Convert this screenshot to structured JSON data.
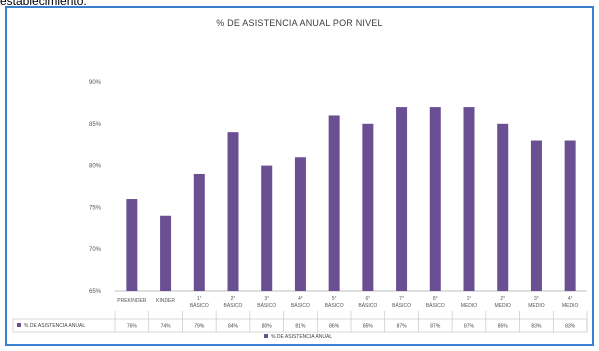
{
  "page": {
    "top_fragment": "establecimiento."
  },
  "chart_data": {
    "type": "bar",
    "title": "% DE ASISTENCIA ANUAL POR NIVEL",
    "xlabel": "",
    "ylabel": "",
    "ylim": [
      65,
      90
    ],
    "yticks": [
      "65%",
      "70%",
      "75%",
      "80%",
      "85%",
      "90%"
    ],
    "ytick_values": [
      65,
      70,
      75,
      80,
      85,
      90
    ],
    "grid": false,
    "legend_position": "bottom",
    "series_color": "#6a4f93",
    "categories": [
      "PREKINDER",
      "KINDER",
      "1° BÁSICO",
      "2° BÁSICO",
      "3° BÁSICO",
      "4° BÁSICO",
      "5° BÁSICO",
      "6° BÁSICO",
      "7° BÁSICO",
      "8° BÁSICO",
      "1° MEDIO",
      "2° MEDIO",
      "3° MEDIO",
      "4° MEDIO"
    ],
    "series": [
      {
        "name": "% DE ASISTENCIA ANUAL",
        "values": [
          76,
          74,
          79,
          84,
          80,
          81,
          86,
          85,
          87,
          87,
          87,
          85,
          83,
          83
        ],
        "labels": [
          "76%",
          "74%",
          "79%",
          "84%",
          "80%",
          "81%",
          "86%",
          "85%",
          "87%",
          "87%",
          "87%",
          "85%",
          "83%",
          "83%"
        ]
      }
    ]
  }
}
